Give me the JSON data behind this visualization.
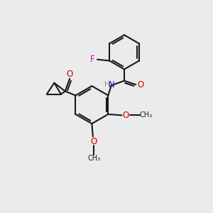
{
  "background_color": "#ebebeb",
  "bond_color": "#1a1a1a",
  "atom_colors": {
    "F": "#cc00cc",
    "N": "#2222cc",
    "O": "#cc0000",
    "H": "#888888",
    "C": "#1a1a1a"
  }
}
